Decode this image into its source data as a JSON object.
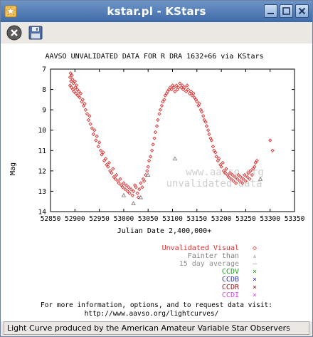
{
  "window": {
    "title": "kstar.pl - KStars"
  },
  "toolbar": {
    "close_icon": "close-circle-icon",
    "save_icon": "floppy-disk-icon"
  },
  "chart_data": {
    "type": "scatter",
    "title": "AAVSO UNVALIDATED DATA FOR R DRA 1632+66 via KStars",
    "xlabel": "Julian Date 2,400,000+",
    "ylabel": "Mag",
    "xlim": [
      52850,
      53350
    ],
    "ylim": [
      14,
      7
    ],
    "y_inverted": true,
    "x_ticks": [
      52850,
      52900,
      52950,
      53000,
      53050,
      53100,
      53150,
      53200,
      53250,
      53300,
      53350
    ],
    "y_ticks": [
      7,
      8,
      9,
      10,
      11,
      12,
      13,
      14
    ],
    "watermark": [
      "www.aavso.org",
      "unvalidated data"
    ],
    "colors": {
      "visual": "#e03030",
      "fainter": "#808080"
    },
    "series": [
      {
        "name": "Unvalidated Visual",
        "marker": "diamond",
        "color": "#e03030",
        "points": [
          [
            52890,
            7.4
          ],
          [
            52890,
            7.8
          ],
          [
            52891,
            7.2
          ],
          [
            52892,
            7.6
          ],
          [
            52893,
            7.9
          ],
          [
            52894,
            7.3
          ],
          [
            52895,
            7.5
          ],
          [
            52896,
            8.0
          ],
          [
            52897,
            7.7
          ],
          [
            52898,
            8.1
          ],
          [
            52900,
            7.6
          ],
          [
            52901,
            7.9
          ],
          [
            52902,
            8.2
          ],
          [
            52903,
            7.8
          ],
          [
            52905,
            8.0
          ],
          [
            52906,
            8.3
          ],
          [
            52908,
            8.1
          ],
          [
            52910,
            8.4
          ],
          [
            52912,
            8.2
          ],
          [
            52914,
            8.6
          ],
          [
            52916,
            8.5
          ],
          [
            52918,
            8.8
          ],
          [
            52920,
            8.7
          ],
          [
            52922,
            9.0
          ],
          [
            52925,
            9.2
          ],
          [
            52928,
            9.5
          ],
          [
            52930,
            9.3
          ],
          [
            52932,
            9.7
          ],
          [
            52935,
            9.9
          ],
          [
            52938,
            10.2
          ],
          [
            52940,
            10.0
          ],
          [
            52943,
            10.5
          ],
          [
            52945,
            10.3
          ],
          [
            52948,
            10.8
          ],
          [
            52950,
            10.6
          ],
          [
            52953,
            11.0
          ],
          [
            52955,
            11.2
          ],
          [
            52958,
            11.1
          ],
          [
            52960,
            11.5
          ],
          [
            52963,
            11.4
          ],
          [
            52965,
            11.7
          ],
          [
            52968,
            11.8
          ],
          [
            52970,
            11.6
          ],
          [
            52972,
            12.0
          ],
          [
            52975,
            12.1
          ],
          [
            52978,
            11.9
          ],
          [
            52980,
            12.3
          ],
          [
            52983,
            12.4
          ],
          [
            52985,
            12.2
          ],
          [
            52988,
            12.5
          ],
          [
            52990,
            12.6
          ],
          [
            52993,
            12.4
          ],
          [
            52995,
            12.7
          ],
          [
            52998,
            12.8
          ],
          [
            53000,
            12.6
          ],
          [
            53003,
            12.9
          ],
          [
            53005,
            12.7
          ],
          [
            53008,
            13.0
          ],
          [
            53010,
            12.8
          ],
          [
            53012,
            13.1
          ],
          [
            53015,
            12.9
          ],
          [
            53018,
            13.2
          ],
          [
            53020,
            13.0
          ],
          [
            53023,
            12.7
          ],
          [
            53025,
            12.8
          ],
          [
            53028,
            13.1
          ],
          [
            53030,
            13.3
          ],
          [
            53032,
            12.9
          ],
          [
            53035,
            12.6
          ],
          [
            53038,
            12.8
          ],
          [
            53040,
            12.4
          ],
          [
            53042,
            12.5
          ],
          [
            53045,
            12.2
          ],
          [
            53048,
            12.0
          ],
          [
            53050,
            11.8
          ],
          [
            53052,
            11.5
          ],
          [
            53055,
            11.3
          ],
          [
            53058,
            11.0
          ],
          [
            53060,
            10.7
          ],
          [
            53063,
            10.4
          ],
          [
            53065,
            10.1
          ],
          [
            53068,
            9.8
          ],
          [
            53070,
            9.5
          ],
          [
            53073,
            9.2
          ],
          [
            53075,
            9.0
          ],
          [
            53078,
            8.8
          ],
          [
            53080,
            8.6
          ],
          [
            53083,
            8.5
          ],
          [
            53085,
            8.3
          ],
          [
            53088,
            8.2
          ],
          [
            53090,
            8.1
          ],
          [
            53093,
            8.0
          ],
          [
            53095,
            7.9
          ],
          [
            53098,
            8.0
          ],
          [
            53100,
            7.8
          ],
          [
            53103,
            7.9
          ],
          [
            53105,
            8.1
          ],
          [
            53108,
            7.8
          ],
          [
            53110,
            8.0
          ],
          [
            53112,
            7.9
          ],
          [
            53115,
            7.7
          ],
          [
            53118,
            7.9
          ],
          [
            53120,
            7.8
          ],
          [
            53122,
            8.0
          ],
          [
            53125,
            7.9
          ],
          [
            53128,
            8.1
          ],
          [
            53130,
            7.8
          ],
          [
            53132,
            8.0
          ],
          [
            53135,
            8.2
          ],
          [
            53138,
            8.1
          ],
          [
            53140,
            8.3
          ],
          [
            53143,
            8.2
          ],
          [
            53145,
            8.4
          ],
          [
            53148,
            8.5
          ],
          [
            53150,
            8.6
          ],
          [
            53153,
            8.8
          ],
          [
            53155,
            8.7
          ],
          [
            53158,
            9.0
          ],
          [
            53160,
            9.1
          ],
          [
            53163,
            9.3
          ],
          [
            53165,
            9.5
          ],
          [
            53168,
            9.6
          ],
          [
            53170,
            9.8
          ],
          [
            53173,
            10.0
          ],
          [
            53175,
            10.2
          ],
          [
            53178,
            10.4
          ],
          [
            53180,
            10.5
          ],
          [
            53183,
            10.8
          ],
          [
            53185,
            11.0
          ],
          [
            53188,
            11.1
          ],
          [
            53190,
            11.3
          ],
          [
            53193,
            11.5
          ],
          [
            53195,
            11.4
          ],
          [
            53198,
            11.7
          ],
          [
            53200,
            11.8
          ],
          [
            53203,
            11.6
          ],
          [
            53205,
            12.0
          ],
          [
            53208,
            12.1
          ],
          [
            53210,
            11.9
          ],
          [
            53213,
            12.2
          ],
          [
            53215,
            12.3
          ],
          [
            53218,
            12.1
          ],
          [
            53220,
            12.4
          ],
          [
            53223,
            12.2
          ],
          [
            53225,
            12.5
          ],
          [
            53228,
            12.3
          ],
          [
            53230,
            12.6
          ],
          [
            53233,
            12.4
          ],
          [
            53235,
            12.2
          ],
          [
            53238,
            12.5
          ],
          [
            53240,
            12.3
          ],
          [
            53243,
            12.6
          ],
          [
            53245,
            12.4
          ],
          [
            53248,
            12.2
          ],
          [
            53250,
            12.5
          ],
          [
            53253,
            12.3
          ],
          [
            53255,
            12.1
          ],
          [
            53258,
            12.4
          ],
          [
            53260,
            12.0
          ],
          [
            53263,
            12.2
          ],
          [
            53265,
            11.9
          ],
          [
            53268,
            11.8
          ],
          [
            53270,
            11.6
          ],
          [
            53273,
            11.5
          ],
          [
            53300,
            10.5
          ],
          [
            53305,
            11.0
          ]
        ]
      },
      {
        "name": "Fainter than",
        "marker": "triangle",
        "color": "#808080",
        "points": [
          [
            53000,
            13.2
          ],
          [
            53020,
            13.6
          ],
          [
            53035,
            13.3
          ],
          [
            53050,
            12.2
          ],
          [
            53105,
            11.4
          ],
          [
            53280,
            12.4
          ]
        ]
      }
    ],
    "legend": [
      {
        "label": "Unvalidated Visual",
        "symbol": "◇",
        "color": "#e03030"
      },
      {
        "label": "Fainter than",
        "symbol": "▵",
        "color": "#808080"
      },
      {
        "label": "15 day average",
        "symbol": "—",
        "color": "#909090"
      },
      {
        "label": "CCDV",
        "symbol": "×",
        "color": "#18a018"
      },
      {
        "label": "CCDB",
        "symbol": "×",
        "color": "#3030c0"
      },
      {
        "label": "CCDR",
        "symbol": "×",
        "color": "#a01818"
      },
      {
        "label": "CCDI",
        "symbol": "×",
        "color": "#e040e0"
      }
    ]
  },
  "footer": {
    "line1": "For more information, options, and to request data visit:",
    "line2": "http://www.aavso.org/lightcurves/"
  },
  "status": {
    "text": "Light Curve produced by the American Amateur Variable Star Observers"
  }
}
